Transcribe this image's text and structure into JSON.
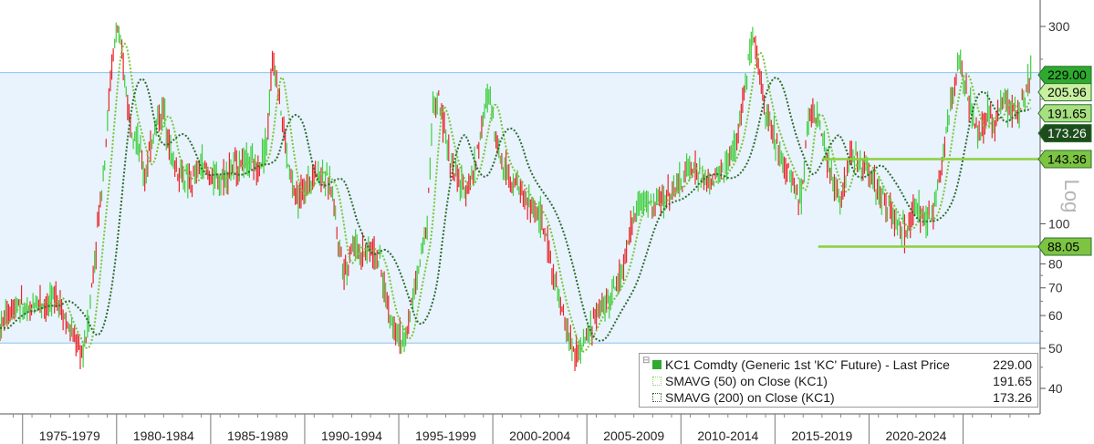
{
  "chart_data": {
    "type": "line",
    "scale": "log",
    "ylim": [
      36,
      360
    ],
    "yticks": [
      40,
      50,
      60,
      70,
      80,
      100,
      300
    ],
    "ylabel": "Log",
    "xlim": [
      1971.3,
      2026.6
    ],
    "period_labels": [
      "1975-1979",
      "1980-1984",
      "1985-1989",
      "1990-1994",
      "1995-1999",
      "2000-2004",
      "2005-2009",
      "2010-2014",
      "2015-2019",
      "2020-2024"
    ],
    "period_starts": [
      1972.5,
      1977.5,
      1982.5,
      1987.5,
      1992.5,
      1997.5,
      2002.5,
      2007.5,
      2012.5,
      2017.5,
      2022.5
    ],
    "band": [
      51.5,
      232
    ],
    "horizontal_lines": [
      {
        "value": 143.36,
        "x_from": 2015.0,
        "x_to": 2026.6
      },
      {
        "value": 88.05,
        "x_from": 2014.8,
        "x_to": 2026.6
      }
    ],
    "value_tags": [
      {
        "label": "229.00",
        "value": 229.0,
        "color": "#2eaa2e",
        "text_color": "#000000"
      },
      {
        "label": "205.96",
        "value": 205.96,
        "color": "#c8f0a0",
        "text_color": "#000000"
      },
      {
        "label": "191.65",
        "value": 191.65,
        "color": "#a7e080",
        "text_color": "#000000"
      },
      {
        "label": "173.26",
        "value": 173.26,
        "color": "#1d4d1d",
        "text_color": "#ffffff"
      },
      {
        "label": "143.36",
        "value": 143.36,
        "color": "#7cc442",
        "text_color": "#000000"
      },
      {
        "label": "88.05",
        "value": 88.05,
        "color": "#7cc442",
        "text_color": "#000000"
      }
    ],
    "series": [
      {
        "name": "KC1 Comdty (Generic 1st 'KC' Future) - Last Price",
        "last": "229.00",
        "style": "candle",
        "x": [
          1971.3,
          1971.8,
          1972.3,
          1972.8,
          1973.3,
          1973.8,
          1974.3,
          1974.8,
          1975.3,
          1975.7,
          1976.0,
          1976.3,
          1976.6,
          1976.9,
          1977.2,
          1977.5,
          1977.8,
          1978.2,
          1978.6,
          1979.0,
          1979.5,
          1980.0,
          1980.5,
          1981.0,
          1981.5,
          1982.0,
          1982.5,
          1983.0,
          1983.5,
          1984.0,
          1984.5,
          1985.0,
          1985.5,
          1985.8,
          1986.0,
          1986.3,
          1986.6,
          1987.0,
          1987.5,
          1988.0,
          1988.5,
          1989.0,
          1989.3,
          1989.7,
          1990.0,
          1990.5,
          1991.0,
          1991.5,
          1992.0,
          1992.5,
          1992.8,
          1993.2,
          1993.6,
          1994.0,
          1994.3,
          1994.6,
          1995.0,
          1995.5,
          1996.0,
          1996.5,
          1997.0,
          1997.3,
          1997.6,
          1998.0,
          1998.5,
          1999.0,
          1999.5,
          2000.0,
          2000.5,
          2001.0,
          2001.5,
          2001.8,
          2002.2,
          2002.6,
          2003.0,
          2003.5,
          2004.0,
          2004.5,
          2005.0,
          2005.5,
          2006.0,
          2006.5,
          2007.0,
          2007.5,
          2008.0,
          2008.5,
          2009.0,
          2009.5,
          2010.0,
          2010.5,
          2011.0,
          2011.3,
          2011.6,
          2012.0,
          2012.5,
          2013.0,
          2013.5,
          2013.9,
          2014.2,
          2014.5,
          2014.8,
          2015.2,
          2015.6,
          2016.0,
          2016.5,
          2017.0,
          2017.5,
          2018.0,
          2018.5,
          2019.0,
          2019.5,
          2020.0,
          2020.5,
          2021.0,
          2021.5,
          2022.0,
          2022.3,
          2022.7,
          2023.0,
          2023.4,
          2023.8,
          2024.2,
          2024.6,
          2025.0,
          2025.4,
          2025.8,
          2026.1
        ],
        "values": [
          56,
          62,
          65,
          60,
          66,
          63,
          68,
          58,
          52,
          48,
          58,
          80,
          110,
          150,
          230,
          300,
          250,
          180,
          160,
          130,
          170,
          190,
          140,
          130,
          125,
          140,
          130,
          128,
          135,
          140,
          142,
          135,
          160,
          250,
          230,
          180,
          140,
          115,
          120,
          135,
          130,
          120,
          90,
          75,
          90,
          85,
          88,
          80,
          60,
          55,
          50,
          65,
          80,
          100,
          190,
          200,
          160,
          130,
          120,
          135,
          180,
          210,
          170,
          140,
          130,
          120,
          110,
          105,
          85,
          65,
          55,
          48,
          50,
          55,
          60,
          65,
          70,
          80,
          105,
          115,
          110,
          115,
          120,
          125,
          140,
          130,
          125,
          130,
          140,
          160,
          230,
          280,
          240,
          190,
          160,
          140,
          125,
          115,
          170,
          190,
          180,
          145,
          125,
          115,
          145,
          140,
          135,
          120,
          110,
          100,
          95,
          110,
          100,
          110,
          155,
          220,
          240,
          210,
          180,
          165,
          185,
          175,
          200,
          190,
          185,
          205,
          229
        ]
      },
      {
        "name": "SMAVG (50) on Close (KC1)",
        "last": "191.65",
        "style": "dotted"
      },
      {
        "name": "SMAVG (200) on Close (KC1)",
        "last": "173.26",
        "style": "dotted"
      }
    ]
  },
  "axis": {
    "label": "Log"
  },
  "legend": {
    "toggle": "⊟",
    "rows": [
      {
        "name": "KC1 Comdty (Generic 1st 'KC' Future) - Last Price",
        "value": "229.00",
        "color": "#2eaa2e"
      },
      {
        "name": "SMAVG (50)  on Close (KC1)",
        "value": "191.65",
        "color": "#c8f0a0"
      },
      {
        "name": "SMAVG (200)  on Close (KC1)",
        "value": "173.26",
        "color": "#1d4d1d"
      }
    ]
  },
  "colors": {
    "band_fill": "#e8f3fd",
    "band_line": "#8cc2ee",
    "up": "#3fcf3f",
    "down": "#e8262a",
    "sma50": "#78c43c",
    "sma200": "#2e6b2e",
    "hline": "#8ccf3c"
  }
}
